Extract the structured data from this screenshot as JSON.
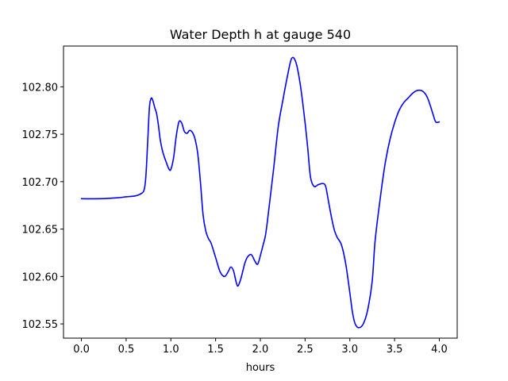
{
  "chart_data": {
    "type": "line",
    "title": "Water Depth h at gauge 540",
    "xlabel": "hours",
    "ylabel": "",
    "xlim": [
      -0.2,
      4.2
    ],
    "ylim": [
      102.535,
      102.843
    ],
    "xticks": [
      0.0,
      0.5,
      1.0,
      1.5,
      2.0,
      2.5,
      3.0,
      3.5,
      4.0
    ],
    "xtick_labels": [
      "0.0",
      "0.5",
      "1.0",
      "1.5",
      "2.0",
      "2.5",
      "3.0",
      "3.5",
      "4.0"
    ],
    "yticks": [
      102.55,
      102.6,
      102.65,
      102.7,
      102.75,
      102.8
    ],
    "ytick_labels": [
      "102.55",
      "102.60",
      "102.65",
      "102.70",
      "102.75",
      "102.80"
    ],
    "grid": false,
    "legend": "none",
    "series": [
      {
        "color": "#0000ff",
        "x": [
          0.0,
          0.2,
          0.4,
          0.5,
          0.6,
          0.66,
          0.7,
          0.72,
          0.74,
          0.76,
          0.78,
          0.8,
          0.82,
          0.84,
          0.86,
          0.88,
          0.9,
          0.92,
          0.95,
          0.98,
          1.0,
          1.03,
          1.06,
          1.09,
          1.12,
          1.15,
          1.18,
          1.21,
          1.24,
          1.27,
          1.3,
          1.33,
          1.36,
          1.39,
          1.42,
          1.45,
          1.5,
          1.55,
          1.6,
          1.64,
          1.67,
          1.7,
          1.73,
          1.75,
          1.78,
          1.81,
          1.83,
          1.86,
          1.9,
          1.94,
          1.97,
          2.0,
          2.03,
          2.06,
          2.1,
          2.15,
          2.2,
          2.25,
          2.3,
          2.35,
          2.4,
          2.45,
          2.5,
          2.53,
          2.56,
          2.6,
          2.65,
          2.7,
          2.73,
          2.76,
          2.8,
          2.83,
          2.86,
          2.9,
          2.93,
          2.96,
          3.0,
          3.03,
          3.06,
          3.1,
          3.15,
          3.2,
          3.25,
          3.28,
          3.32,
          3.36,
          3.4,
          3.45,
          3.5,
          3.55,
          3.6,
          3.65,
          3.7,
          3.75,
          3.8,
          3.84,
          3.87,
          3.9,
          3.93,
          3.96,
          4.0
        ],
        "y": [
          102.682,
          102.682,
          102.683,
          102.684,
          102.685,
          102.687,
          102.691,
          102.705,
          102.74,
          102.778,
          102.788,
          102.785,
          102.778,
          102.772,
          102.76,
          102.745,
          102.735,
          102.728,
          102.72,
          102.713,
          102.713,
          102.725,
          102.748,
          102.763,
          102.762,
          102.753,
          102.751,
          102.754,
          102.752,
          102.745,
          102.73,
          102.7,
          102.665,
          102.648,
          102.64,
          102.635,
          102.62,
          102.605,
          102.6,
          102.605,
          102.61,
          102.606,
          102.594,
          102.59,
          102.597,
          102.608,
          102.615,
          102.621,
          102.623,
          102.616,
          102.613,
          102.622,
          102.633,
          102.645,
          102.675,
          102.715,
          102.758,
          102.785,
          102.81,
          102.83,
          102.825,
          102.8,
          102.762,
          102.735,
          102.705,
          102.695,
          102.697,
          102.698,
          102.695,
          102.68,
          102.66,
          102.648,
          102.641,
          102.635,
          102.625,
          102.61,
          102.583,
          102.562,
          102.55,
          102.546,
          102.55,
          102.565,
          102.595,
          102.635,
          102.668,
          102.697,
          102.722,
          102.745,
          102.762,
          102.775,
          102.783,
          102.788,
          102.793,
          102.796,
          102.796,
          102.793,
          102.788,
          102.78,
          102.771,
          102.763,
          102.763
        ]
      }
    ]
  }
}
